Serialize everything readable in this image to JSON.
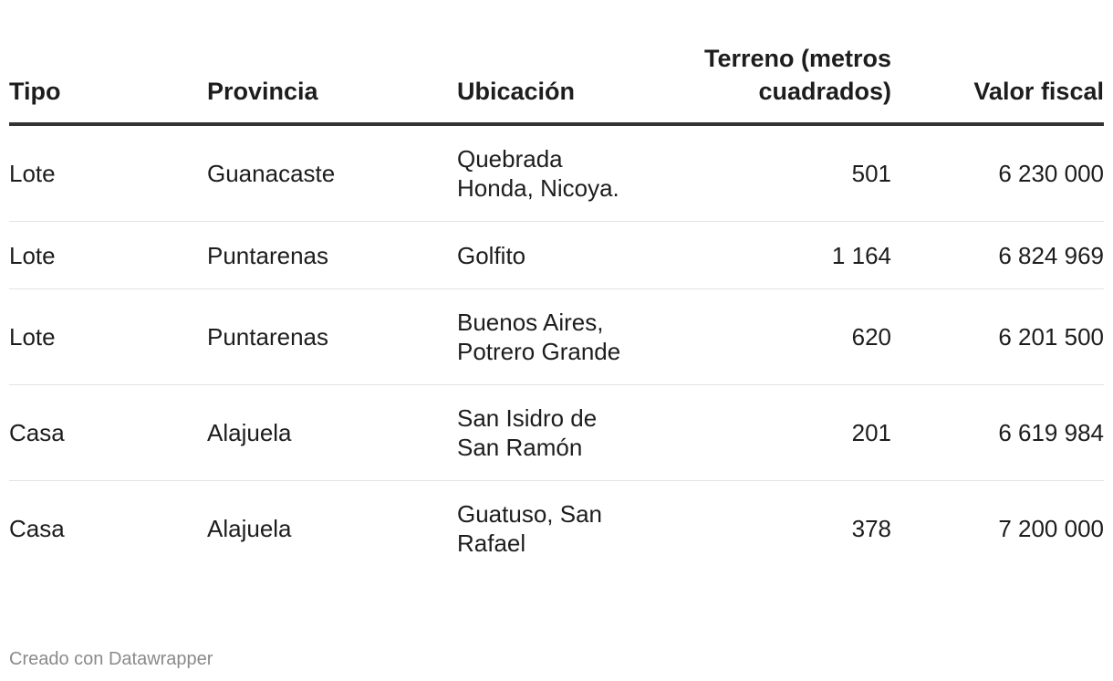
{
  "chart_data": {
    "type": "table",
    "columns": [
      "Tipo",
      "Provincia",
      "Ubicación",
      "Terreno (metros cuadrados)",
      "Valor fiscal"
    ],
    "rows": [
      [
        "Lote",
        "Guanacaste",
        "Quebrada Honda, Nicoya.",
        "501",
        "6 230 000"
      ],
      [
        "Lote",
        "Puntarenas",
        "Golfito",
        "1 164",
        "6 824 969"
      ],
      [
        "Lote",
        "Puntarenas",
        "Buenos Aires, Potrero Grande",
        "620",
        "6 201 500"
      ],
      [
        "Casa",
        "Alajuela",
        "San Isidro de San Ramón",
        "201",
        "6 619 984"
      ],
      [
        "Casa",
        "Alajuela",
        "Guatuso, San Rafael",
        "378",
        "7 200 000"
      ]
    ]
  },
  "footer": {
    "credit": "Creado con Datawrapper"
  },
  "colors": {
    "text": "#1d1d1d",
    "header_rule": "#333333",
    "row_divider": "#e3e3e3",
    "credit_text": "#8a8a8a"
  }
}
